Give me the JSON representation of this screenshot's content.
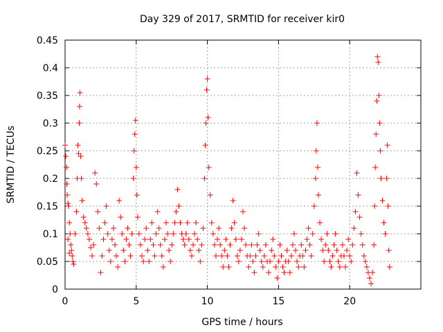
{
  "chart_data": {
    "type": "scatter",
    "title": "Day 329 of 2017, SRMTID for receiver kir0",
    "xlabel": "GPS time / hours",
    "ylabel": "SRMTID / TECUs",
    "xlim": [
      0,
      25
    ],
    "ylim": [
      0,
      0.45
    ],
    "xticks": [
      0,
      5,
      10,
      15,
      20
    ],
    "xtick_labels": [
      "0",
      "5",
      "10",
      "15",
      "20"
    ],
    "yticks": [
      0,
      0.05,
      0.1,
      0.15,
      0.2,
      0.25,
      0.3,
      0.35,
      0.4,
      0.45
    ],
    "ytick_labels": [
      "0",
      "0.05",
      "0.1",
      "0.15",
      "0.2",
      "0.25",
      "0.3",
      "0.35",
      "0.4",
      "0.45"
    ],
    "grid": true,
    "marker": "plus",
    "color": "#ff0000",
    "series": [
      {
        "name": "SRMTID",
        "points": [
          [
            0.0,
            0.26
          ],
          [
            0.05,
            0.24
          ],
          [
            0.1,
            0.22
          ],
          [
            0.12,
            0.19
          ],
          [
            0.15,
            0.17
          ],
          [
            0.2,
            0.155
          ],
          [
            0.25,
            0.15
          ],
          [
            0.3,
            0.12
          ],
          [
            0.35,
            0.1
          ],
          [
            0.4,
            0.08
          ],
          [
            0.45,
            0.07
          ],
          [
            0.5,
            0.06
          ],
          [
            0.55,
            0.05
          ],
          [
            0.6,
            0.045
          ],
          [
            0.2,
            0.09
          ],
          [
            0.3,
            0.065
          ],
          [
            0.7,
            0.1
          ],
          [
            0.8,
            0.14
          ],
          [
            0.85,
            0.2
          ],
          [
            0.9,
            0.26
          ],
          [
            0.95,
            0.245
          ],
          [
            1.0,
            0.3
          ],
          [
            1.02,
            0.33
          ],
          [
            1.05,
            0.355
          ],
          [
            1.1,
            0.24
          ],
          [
            1.15,
            0.2
          ],
          [
            1.2,
            0.16
          ],
          [
            1.3,
            0.13
          ],
          [
            1.4,
            0.12
          ],
          [
            1.5,
            0.11
          ],
          [
            1.6,
            0.1
          ],
          [
            1.7,
            0.09
          ],
          [
            1.8,
            0.075
          ],
          [
            1.9,
            0.06
          ],
          [
            2.0,
            0.08
          ],
          [
            2.1,
            0.21
          ],
          [
            2.2,
            0.19
          ],
          [
            2.3,
            0.14
          ],
          [
            2.4,
            0.11
          ],
          [
            2.5,
            0.03
          ],
          [
            2.6,
            0.06
          ],
          [
            2.7,
            0.09
          ],
          [
            2.8,
            0.12
          ],
          [
            2.9,
            0.15
          ],
          [
            3.0,
            0.1
          ],
          [
            3.1,
            0.07
          ],
          [
            3.2,
            0.05
          ],
          [
            3.3,
            0.09
          ],
          [
            3.4,
            0.11
          ],
          [
            3.5,
            0.08
          ],
          [
            3.6,
            0.06
          ],
          [
            3.7,
            0.04
          ],
          [
            3.8,
            0.16
          ],
          [
            3.9,
            0.13
          ],
          [
            4.0,
            0.1
          ],
          [
            4.1,
            0.07
          ],
          [
            4.2,
            0.05
          ],
          [
            4.3,
            0.09
          ],
          [
            4.4,
            0.11
          ],
          [
            4.5,
            0.08
          ],
          [
            4.6,
            0.06
          ],
          [
            4.7,
            0.1
          ],
          [
            4.8,
            0.2
          ],
          [
            4.85,
            0.25
          ],
          [
            4.9,
            0.28
          ],
          [
            4.95,
            0.305
          ],
          [
            5.0,
            0.22
          ],
          [
            5.05,
            0.17
          ],
          [
            5.1,
            0.13
          ],
          [
            5.2,
            0.1
          ],
          [
            5.3,
            0.08
          ],
          [
            5.4,
            0.06
          ],
          [
            5.5,
            0.05
          ],
          [
            5.6,
            0.09
          ],
          [
            5.7,
            0.11
          ],
          [
            5.8,
            0.07
          ],
          [
            5.9,
            0.05
          ],
          [
            6.0,
            0.09
          ],
          [
            6.1,
            0.12
          ],
          [
            6.2,
            0.08
          ],
          [
            6.3,
            0.06
          ],
          [
            6.4,
            0.1
          ],
          [
            6.5,
            0.14
          ],
          [
            6.6,
            0.11
          ],
          [
            6.7,
            0.08
          ],
          [
            6.8,
            0.06
          ],
          [
            6.9,
            0.04
          ],
          [
            7.0,
            0.09
          ],
          [
            7.1,
            0.12
          ],
          [
            7.2,
            0.1
          ],
          [
            7.3,
            0.07
          ],
          [
            7.4,
            0.05
          ],
          [
            7.5,
            0.08
          ],
          [
            7.6,
            0.1
          ],
          [
            7.7,
            0.12
          ],
          [
            7.8,
            0.14
          ],
          [
            7.9,
            0.18
          ],
          [
            8.0,
            0.15
          ],
          [
            8.1,
            0.12
          ],
          [
            8.2,
            0.1
          ],
          [
            8.3,
            0.09
          ],
          [
            8.4,
            0.08
          ],
          [
            8.5,
            0.1
          ],
          [
            8.6,
            0.12
          ],
          [
            8.7,
            0.09
          ],
          [
            8.8,
            0.07
          ],
          [
            8.9,
            0.06
          ],
          [
            9.0,
            0.08
          ],
          [
            9.1,
            0.1
          ],
          [
            9.2,
            0.12
          ],
          [
            9.3,
            0.09
          ],
          [
            9.4,
            0.07
          ],
          [
            9.5,
            0.05
          ],
          [
            9.6,
            0.08
          ],
          [
            9.7,
            0.11
          ],
          [
            9.8,
            0.2
          ],
          [
            9.85,
            0.26
          ],
          [
            9.9,
            0.3
          ],
          [
            9.95,
            0.36
          ],
          [
            10.0,
            0.38
          ],
          [
            10.05,
            0.31
          ],
          [
            10.1,
            0.22
          ],
          [
            10.2,
            0.17
          ],
          [
            10.3,
            0.12
          ],
          [
            10.4,
            0.1
          ],
          [
            10.5,
            0.08
          ],
          [
            10.6,
            0.06
          ],
          [
            10.7,
            0.09
          ],
          [
            10.8,
            0.11
          ],
          [
            10.9,
            0.08
          ],
          [
            11.0,
            0.06
          ],
          [
            11.1,
            0.04
          ],
          [
            11.2,
            0.07
          ],
          [
            11.3,
            0.09
          ],
          [
            11.4,
            0.06
          ],
          [
            11.5,
            0.04
          ],
          [
            11.6,
            0.08
          ],
          [
            11.7,
            0.11
          ],
          [
            11.8,
            0.16
          ],
          [
            11.9,
            0.12
          ],
          [
            12.0,
            0.09
          ],
          [
            12.1,
            0.06
          ],
          [
            12.2,
            0.05
          ],
          [
            12.3,
            0.07
          ],
          [
            12.4,
            0.09
          ],
          [
            12.5,
            0.14
          ],
          [
            12.6,
            0.11
          ],
          [
            12.7,
            0.08
          ],
          [
            12.8,
            0.06
          ],
          [
            12.9,
            0.04
          ],
          [
            13.0,
            0.06
          ],
          [
            13.1,
            0.08
          ],
          [
            13.2,
            0.05
          ],
          [
            13.3,
            0.03
          ],
          [
            13.4,
            0.06
          ],
          [
            13.5,
            0.08
          ],
          [
            13.6,
            0.1
          ],
          [
            13.7,
            0.07
          ],
          [
            13.8,
            0.05
          ],
          [
            13.9,
            0.04
          ],
          [
            14.0,
            0.06
          ],
          [
            14.1,
            0.08
          ],
          [
            14.2,
            0.05
          ],
          [
            14.3,
            0.03
          ],
          [
            14.4,
            0.05
          ],
          [
            14.5,
            0.07
          ],
          [
            14.6,
            0.09
          ],
          [
            14.7,
            0.06
          ],
          [
            14.8,
            0.04
          ],
          [
            14.9,
            0.02
          ],
          [
            15.0,
            0.05
          ],
          [
            15.1,
            0.08
          ],
          [
            15.2,
            0.06
          ],
          [
            15.3,
            0.04
          ],
          [
            15.4,
            0.03
          ],
          [
            15.5,
            0.05
          ],
          [
            15.6,
            0.07
          ],
          [
            15.7,
            0.05
          ],
          [
            15.8,
            0.03
          ],
          [
            15.9,
            0.06
          ],
          [
            16.0,
            0.08
          ],
          [
            16.1,
            0.1
          ],
          [
            16.2,
            0.07
          ],
          [
            16.3,
            0.05
          ],
          [
            16.4,
            0.04
          ],
          [
            16.5,
            0.06
          ],
          [
            16.6,
            0.08
          ],
          [
            16.7,
            0.06
          ],
          [
            16.8,
            0.04
          ],
          [
            16.9,
            0.07
          ],
          [
            17.0,
            0.09
          ],
          [
            17.1,
            0.11
          ],
          [
            17.2,
            0.08
          ],
          [
            17.3,
            0.06
          ],
          [
            17.4,
            0.1
          ],
          [
            17.5,
            0.15
          ],
          [
            17.6,
            0.2
          ],
          [
            17.65,
            0.25
          ],
          [
            17.7,
            0.3
          ],
          [
            17.75,
            0.22
          ],
          [
            17.8,
            0.17
          ],
          [
            17.9,
            0.12
          ],
          [
            18.0,
            0.09
          ],
          [
            18.1,
            0.07
          ],
          [
            18.2,
            0.05
          ],
          [
            18.3,
            0.08
          ],
          [
            18.4,
            0.1
          ],
          [
            18.5,
            0.07
          ],
          [
            18.6,
            0.05
          ],
          [
            18.7,
            0.04
          ],
          [
            18.8,
            0.06
          ],
          [
            18.9,
            0.08
          ],
          [
            19.0,
            0.1
          ],
          [
            19.1,
            0.07
          ],
          [
            19.2,
            0.05
          ],
          [
            19.3,
            0.04
          ],
          [
            19.4,
            0.06
          ],
          [
            19.5,
            0.08
          ],
          [
            19.6,
            0.06
          ],
          [
            19.7,
            0.04
          ],
          [
            19.8,
            0.07
          ],
          [
            19.9,
            0.09
          ],
          [
            20.0,
            0.06
          ],
          [
            20.1,
            0.05
          ],
          [
            20.2,
            0.08
          ],
          [
            20.3,
            0.11
          ],
          [
            20.4,
            0.14
          ],
          [
            20.5,
            0.21
          ],
          [
            20.6,
            0.17
          ],
          [
            20.7,
            0.13
          ],
          [
            20.8,
            0.1
          ],
          [
            20.9,
            0.08
          ],
          [
            21.0,
            0.06
          ],
          [
            21.1,
            0.05
          ],
          [
            21.2,
            0.04
          ],
          [
            21.3,
            0.03
          ],
          [
            21.4,
            0.02
          ],
          [
            21.5,
            0.01
          ],
          [
            21.6,
            0.03
          ],
          [
            21.7,
            0.08
          ],
          [
            21.75,
            0.15
          ],
          [
            21.8,
            0.22
          ],
          [
            21.85,
            0.28
          ],
          [
            21.9,
            0.34
          ],
          [
            21.95,
            0.42
          ],
          [
            22.0,
            0.41
          ],
          [
            22.05,
            0.35
          ],
          [
            22.1,
            0.3
          ],
          [
            22.15,
            0.25
          ],
          [
            22.2,
            0.2
          ],
          [
            22.3,
            0.16
          ],
          [
            22.4,
            0.12
          ],
          [
            22.5,
            0.1
          ],
          [
            22.6,
            0.2
          ],
          [
            22.65,
            0.26
          ],
          [
            22.7,
            0.15
          ],
          [
            22.75,
            0.07
          ],
          [
            22.8,
            0.04
          ]
        ]
      }
    ]
  }
}
